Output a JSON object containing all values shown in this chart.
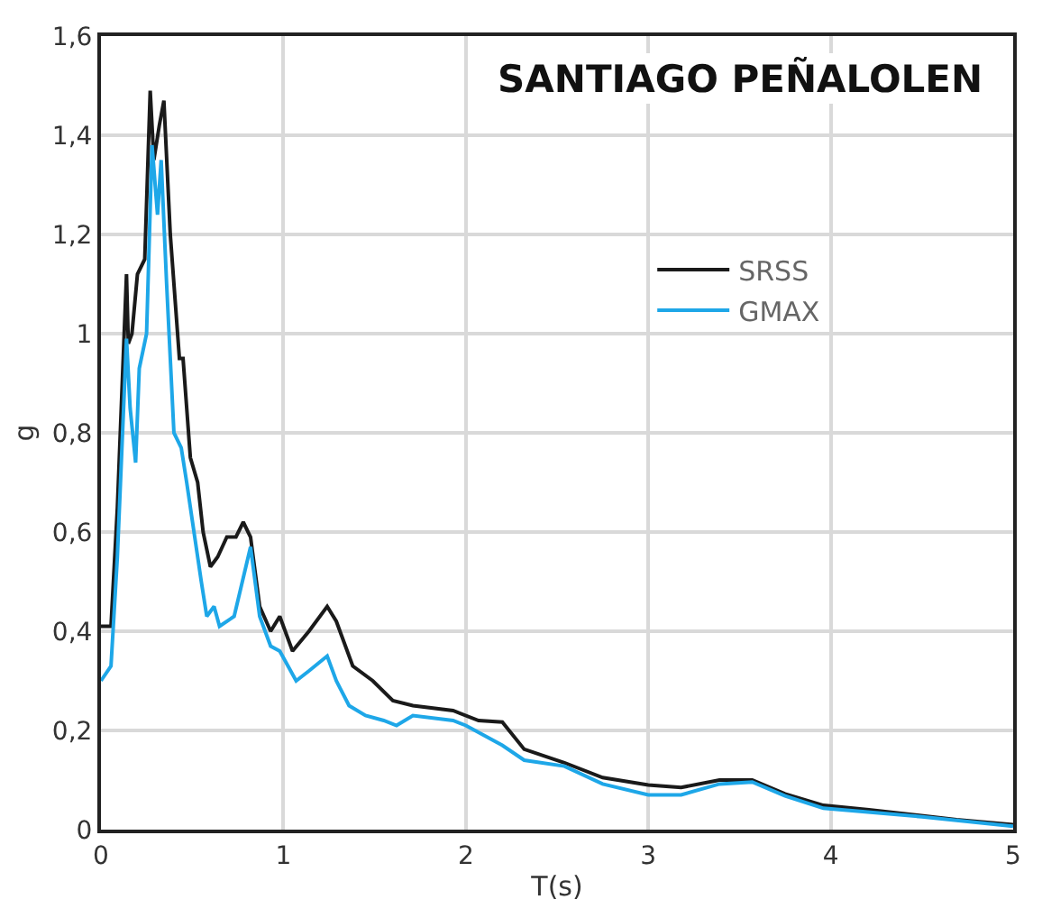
{
  "chart_data": {
    "type": "line",
    "title": "SANTIAGO PEÑALOLEN",
    "xlabel": "T(s)",
    "ylabel": "g",
    "xlim": [
      0,
      5
    ],
    "xticks": [
      0,
      1,
      2,
      3,
      4,
      5
    ],
    "ylim": [
      0,
      1.6
    ],
    "yticks": [
      0,
      {
        "value": 0.2,
        "label": "0,2"
      },
      {
        "value": 0.4,
        "label": "0,4"
      },
      {
        "value": 0.6,
        "label": "0,6"
      },
      {
        "value": 0.8,
        "label": "0,8"
      },
      1,
      {
        "value": 1.2,
        "label": "1,2"
      },
      {
        "value": 1.4,
        "label": "1,4"
      },
      {
        "value": 1.6,
        "label": "1,6"
      }
    ],
    "grid": true,
    "legend": "right",
    "marker": "none",
    "line_style": "solid",
    "series": [
      {
        "name": "SRSS",
        "color": "#1a1a1a",
        "x": [
          0,
          0.055,
          0.09,
          0.14,
          0.15,
          0.17,
          0.2,
          0.24,
          0.27,
          0.29,
          0.32,
          0.345,
          0.38,
          0.43,
          0.45,
          0.49,
          0.53,
          0.56,
          0.6,
          0.64,
          0.69,
          0.74,
          0.78,
          0.82,
          0.87,
          0.93,
          0.98,
          1.05,
          1.14,
          1.24,
          1.29,
          1.38,
          1.49,
          1.6,
          1.71,
          1.93,
          2.07,
          2.2,
          2.32,
          2.54,
          2.75,
          3.0,
          3.18,
          3.39,
          3.57,
          3.75,
          3.96,
          4.21,
          4.69,
          5.0
        ],
        "values": [
          0.41,
          0.41,
          0.65,
          1.12,
          0.98,
          1.0,
          1.12,
          1.15,
          1.49,
          1.35,
          1.42,
          1.47,
          1.2,
          0.95,
          0.95,
          0.75,
          0.7,
          0.6,
          0.53,
          0.55,
          0.59,
          0.59,
          0.62,
          0.59,
          0.45,
          0.4,
          0.43,
          0.36,
          0.4,
          0.45,
          0.42,
          0.33,
          0.3,
          0.26,
          0.25,
          0.24,
          0.22,
          0.217,
          0.162,
          0.135,
          0.105,
          0.09,
          0.085,
          0.1,
          0.1,
          0.072,
          0.049,
          0.04,
          0.02,
          0.01
        ]
      },
      {
        "name": "GMAX",
        "color": "#1ea7e8",
        "x": [
          0,
          0.055,
          0.09,
          0.14,
          0.16,
          0.19,
          0.21,
          0.25,
          0.28,
          0.31,
          0.33,
          0.36,
          0.4,
          0.44,
          0.47,
          0.55,
          0.58,
          0.62,
          0.65,
          0.73,
          0.82,
          0.87,
          0.93,
          0.98,
          1.07,
          1.14,
          1.24,
          1.29,
          1.36,
          1.45,
          1.55,
          1.62,
          1.71,
          1.93,
          2.0,
          2.2,
          2.32,
          2.54,
          2.75,
          3.0,
          3.18,
          3.39,
          3.57,
          3.75,
          3.96,
          4.5,
          5.0
        ],
        "values": [
          0.3,
          0.33,
          0.55,
          0.99,
          0.85,
          0.74,
          0.93,
          1.0,
          1.38,
          1.24,
          1.35,
          1.1,
          0.8,
          0.77,
          0.7,
          0.5,
          0.43,
          0.45,
          0.41,
          0.43,
          0.57,
          0.43,
          0.37,
          0.36,
          0.3,
          0.32,
          0.35,
          0.3,
          0.25,
          0.23,
          0.22,
          0.21,
          0.23,
          0.22,
          0.21,
          0.17,
          0.14,
          0.128,
          0.092,
          0.07,
          0.07,
          0.092,
          0.096,
          0.068,
          0.043,
          0.026,
          0.007
        ]
      }
    ]
  }
}
